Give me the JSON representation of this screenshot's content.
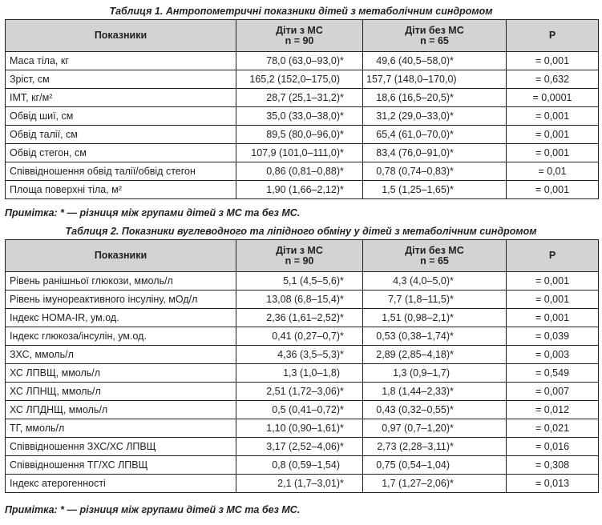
{
  "table1": {
    "caption": "Таблиця 1.  Антропометричні показники дітей з метаболічним синдромом",
    "headers": {
      "col1": "Показники",
      "col2_line1": "Діти з МС",
      "col2_line2": "n = 90",
      "col3_line1": "Діти без МС",
      "col3_line2": "n = 65",
      "col4": "Р"
    },
    "rows": [
      {
        "label": "Маса тіла, кг",
        "ms": "78,0 (63,0–93,0)",
        "ms_mark": "*",
        "noms": "49,6 (40,5–58,0)",
        "noms_mark": "*",
        "p": "= 0,001"
      },
      {
        "label": "Зріст, см",
        "ms": "165,2 (152,0–175,0)",
        "ms_mark": "",
        "noms": "157,7 (148,0–170,0)",
        "noms_mark": "",
        "p": "= 0,632"
      },
      {
        "label": "ІМТ, кг/м²",
        "ms": "28,7 (25,1–31,2)",
        "ms_mark": "*",
        "noms": "18,6 (16,5–20,5)",
        "noms_mark": "*",
        "p": "= 0,0001"
      },
      {
        "label": "Обвід шиї, см",
        "ms": "35,0 (33,0–38,0)",
        "ms_mark": "*",
        "noms": "31,2 (29,0–33,0)",
        "noms_mark": "*",
        "p": "= 0,001"
      },
      {
        "label": "Обвід талії, см",
        "ms": "89,5 (80,0–96,0)",
        "ms_mark": "*",
        "noms": "65,4 (61,0–70,0)",
        "noms_mark": "*",
        "p": "= 0,001"
      },
      {
        "label": "Обвід стегон, см",
        "ms": "107,9 (101,0–111,0)",
        "ms_mark": "*",
        "noms": "83,4 (76,0–91,0)",
        "noms_mark": "*",
        "p": "= 0,001"
      },
      {
        "label": "Співвідношення обвід талії/обвід стегон",
        "ms": "0,86 (0,81–0,88)",
        "ms_mark": "*",
        "noms": "0,78 (0,74–0,83)",
        "noms_mark": "*",
        "p": "= 0,01"
      },
      {
        "label": "Площа поверхні тіла, м²",
        "ms": "1,90 (1,66–2,12)",
        "ms_mark": "*",
        "noms": "1,5 (1,25–1,65)",
        "noms_mark": "*",
        "p": "= 0,001"
      }
    ],
    "note": "Примітка: * — різниця між групами дітей з МС та без МС."
  },
  "table2": {
    "caption": "Таблиця 2.  Показники вуглеводного та ліпідного обміну у дітей з метаболічним синдромом",
    "headers": {
      "col1": "Показники",
      "col2_line1": "Діти з МС",
      "col2_line2": "n = 90",
      "col3_line1": "Діти без МС",
      "col3_line2": "n = 65",
      "col4": "Р"
    },
    "rows": [
      {
        "label": "Рівень ранішньої глюкози, ммоль/л",
        "ms": "5,1 (4,5–5,6)",
        "ms_mark": "*",
        "noms": "4,3 (4,0–5,0)",
        "noms_mark": "*",
        "p": "= 0,001"
      },
      {
        "label": "Рівень імунореактивного інсуліну, мОд/л",
        "ms": "13,08 (6,8–15,4)",
        "ms_mark": "*",
        "noms": "7,7 (1,8–11,5)",
        "noms_mark": "*",
        "p": "= 0,001"
      },
      {
        "label": "Індекс НОМА-ІR, ум.од.",
        "ms": "2,36 (1,61–2,52)",
        "ms_mark": "*",
        "noms": "1,51 (0,98–2,1)",
        "noms_mark": "*",
        "p": "= 0,001"
      },
      {
        "label": "Індекс глюкоза/інсулін, ум.од.",
        "ms": "0,41 (0,27–0,7)",
        "ms_mark": "*",
        "noms": "0,53 (0,38–1,74)",
        "noms_mark": "*",
        "p": "= 0,039"
      },
      {
        "label": "ЗХС, ммоль/л",
        "ms": "4,36 (3,5–5,3)",
        "ms_mark": "*",
        "noms": "2,89 (2,85–4,18)",
        "noms_mark": "*",
        "p": "= 0,003"
      },
      {
        "label": "ХС ЛПВЩ, ммоль/л",
        "ms": "1,3 (1,0–1,8)",
        "ms_mark": "",
        "noms": "1,3 (0,9–1,7)",
        "noms_mark": "",
        "p": "= 0,549"
      },
      {
        "label": "ХС ЛПНЩ, ммоль/л",
        "ms": "2,51 (1,72–3,06)",
        "ms_mark": "*",
        "noms": "1,8 (1,44–2,33)",
        "noms_mark": "*",
        "p": "= 0,007"
      },
      {
        "label": "ХС ЛПДНЩ, ммоль/л",
        "ms": "0,5 (0,41–0,72)",
        "ms_mark": "*",
        "noms": "0,43 (0,32–0,55)",
        "noms_mark": "*",
        "p": "= 0,012"
      },
      {
        "label": "ТГ, ммоль/л",
        "ms": "1,10 (0,90–1,61)",
        "ms_mark": "*",
        "noms": "0,97 (0,7–1,20)",
        "noms_mark": "*",
        "p": "= 0,021"
      },
      {
        "label": "Співвідношення ЗХС/ХС ЛПВЩ",
        "ms": "3,17 (2,52–4,06)",
        "ms_mark": "*",
        "noms": "2,73 (2,28–3,11)",
        "noms_mark": "*",
        "p": "= 0,016"
      },
      {
        "label": "Співвідношення ТГ/ХС ЛПВЩ",
        "ms": "0,8 (0,59–1,54)",
        "ms_mark": "",
        "noms": "0,75 (0,54–1,04)",
        "noms_mark": "",
        "p": "= 0,308"
      },
      {
        "label": "Індекс атерогенності",
        "ms": "2,1 (1,7–3,01)",
        "ms_mark": "*",
        "noms": "1,7 (1,27–2,06)",
        "noms_mark": "*",
        "p": "= 0,013"
      }
    ],
    "note": "Примітка: * — різниця між групами дітей з МС та без МС."
  }
}
